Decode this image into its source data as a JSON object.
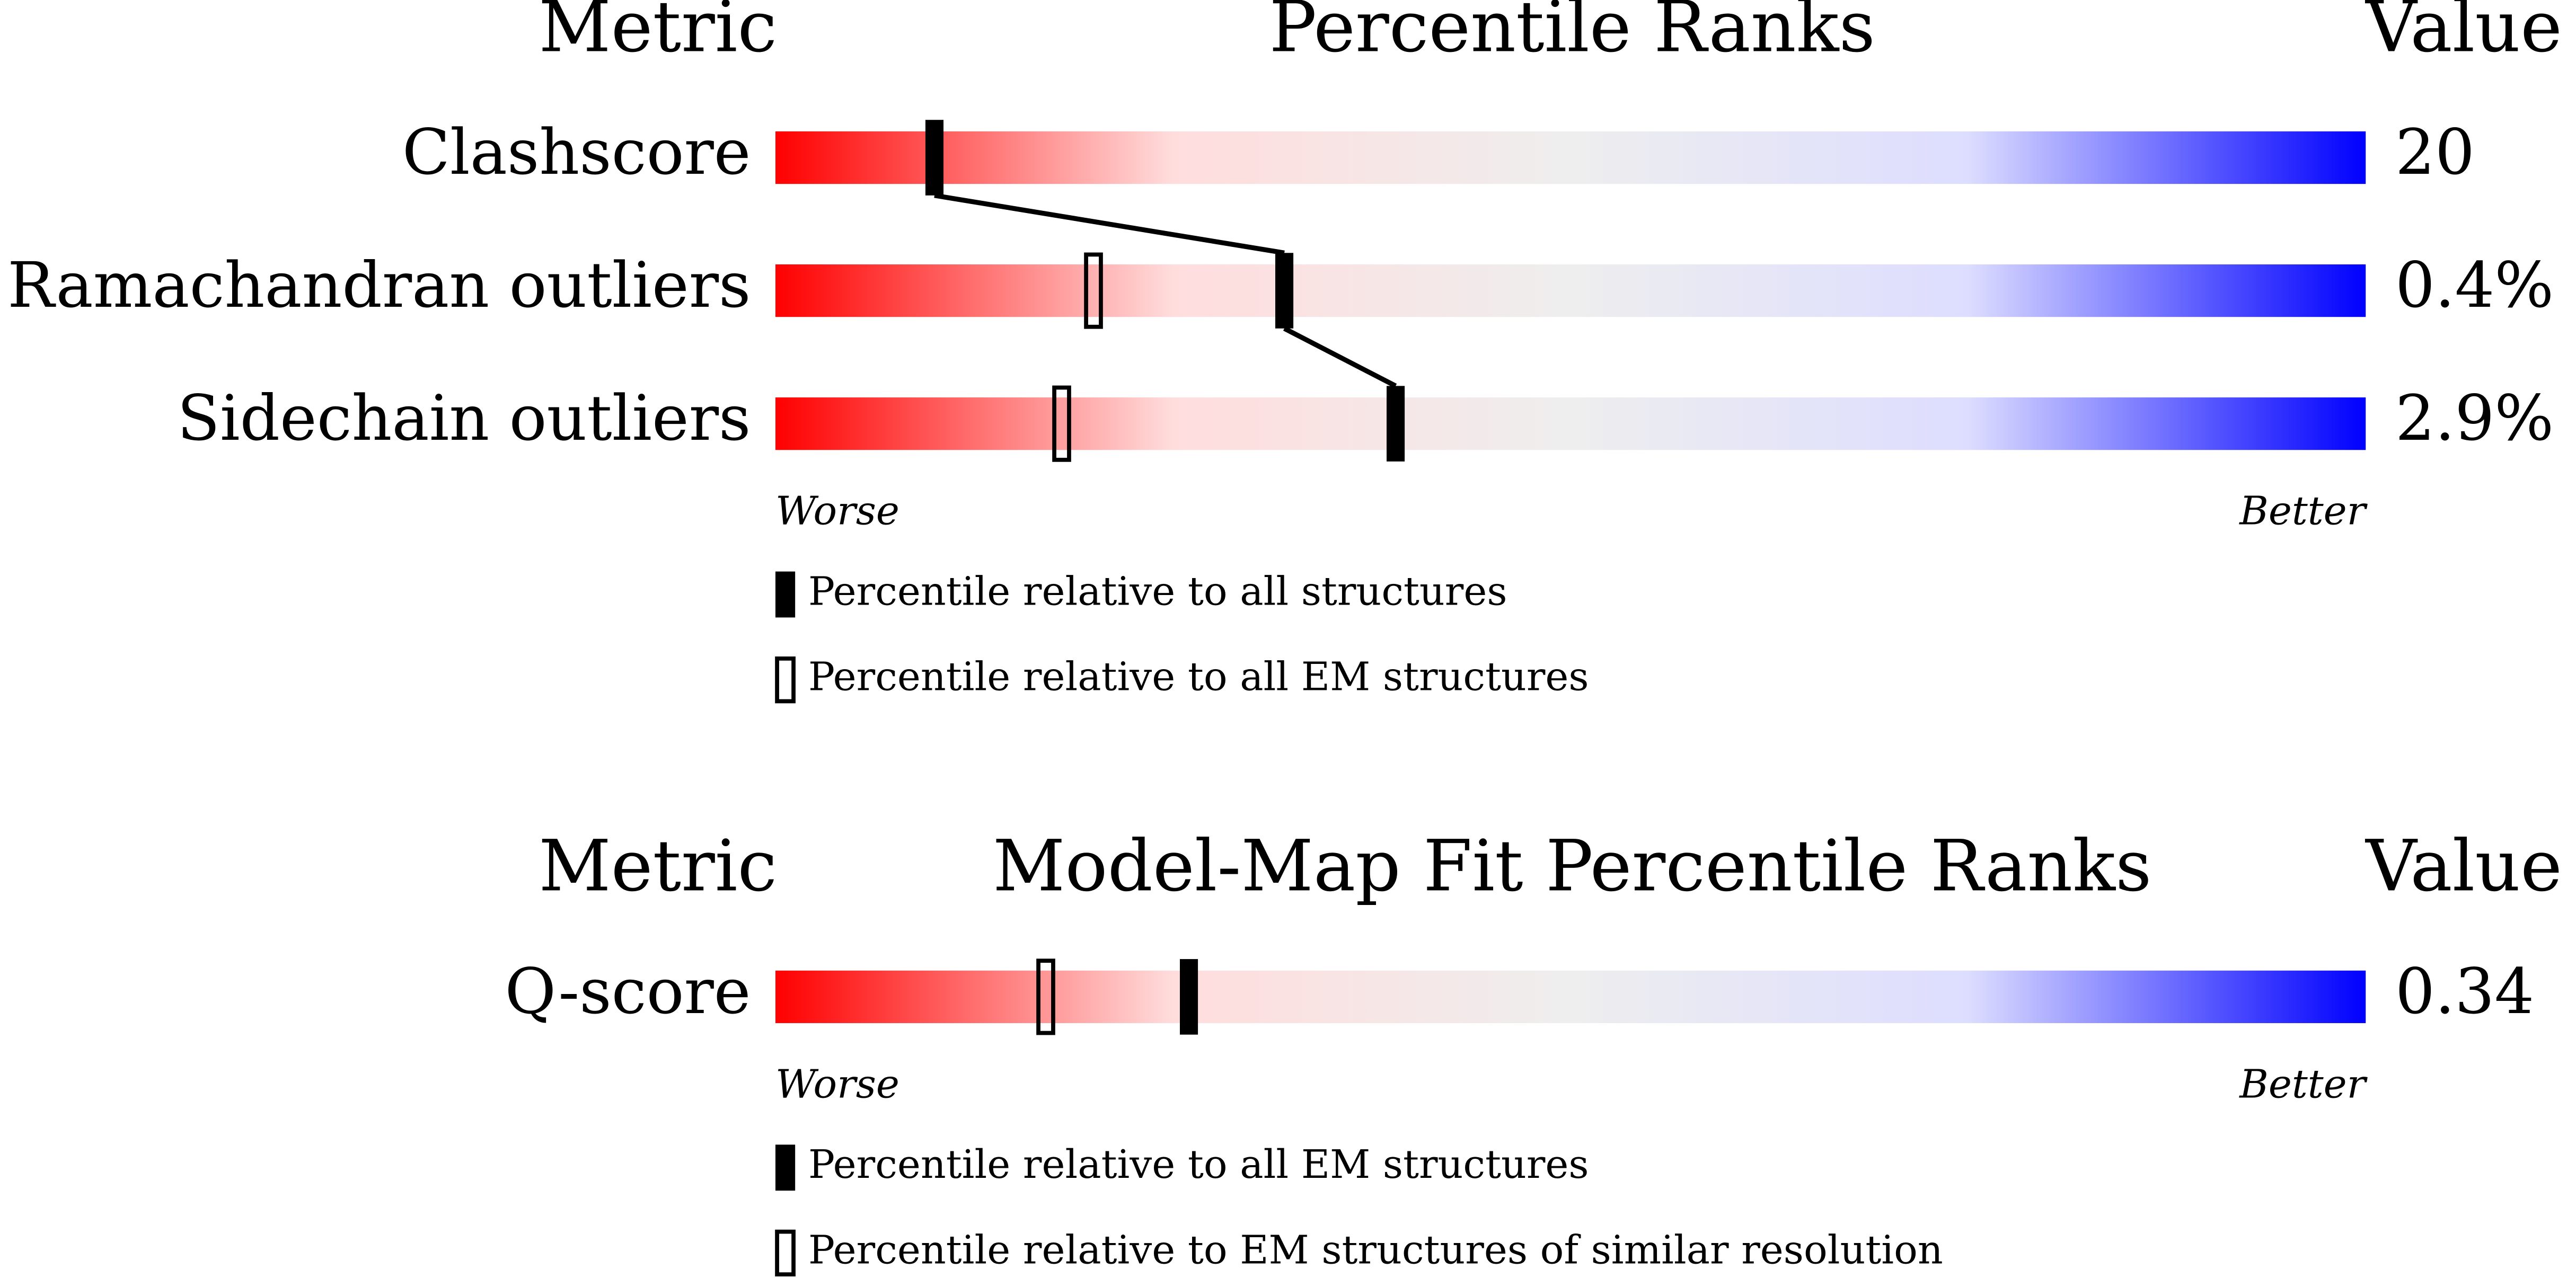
{
  "chart_data": [
    {
      "type": "percentile",
      "metric_header": "Metric",
      "title": "Percentile Ranks",
      "value_header": "Value",
      "categories": [
        "Clashscore",
        "Ramachandran outliers",
        "Sidechain outliers"
      ],
      "value_text": [
        "20",
        "0.4%",
        "2.9%"
      ],
      "series": [
        {
          "name": "Percentile relative to all structures",
          "style": "filled",
          "values": [
            10,
            32,
            39
          ]
        },
        {
          "name": "Percentile relative to all EM structures",
          "style": "open",
          "values": [
            null,
            20,
            18
          ]
        }
      ],
      "xlim": [
        0,
        100
      ],
      "low_label": "Worse",
      "high_label": "Better",
      "colorscale": [
        "#ff0000",
        "#ffdddd",
        "#eeeeee",
        "#ddddff",
        "#0000ff"
      ]
    },
    {
      "type": "percentile",
      "metric_header": "Metric",
      "title": "Model-Map Fit Percentile Ranks",
      "value_header": "Value",
      "categories": [
        "Q-score"
      ],
      "value_text": [
        "0.34"
      ],
      "series": [
        {
          "name": "Percentile relative to all EM structures",
          "style": "filled",
          "values": [
            26
          ]
        },
        {
          "name": "Percentile relative to EM structures of similar resolution",
          "style": "open",
          "values": [
            17
          ]
        }
      ],
      "xlim": [
        0,
        100
      ],
      "low_label": "Worse",
      "high_label": "Better",
      "colorscale": [
        "#ff0000",
        "#ffdddd",
        "#eeeeee",
        "#ddddff",
        "#0000ff"
      ]
    }
  ]
}
